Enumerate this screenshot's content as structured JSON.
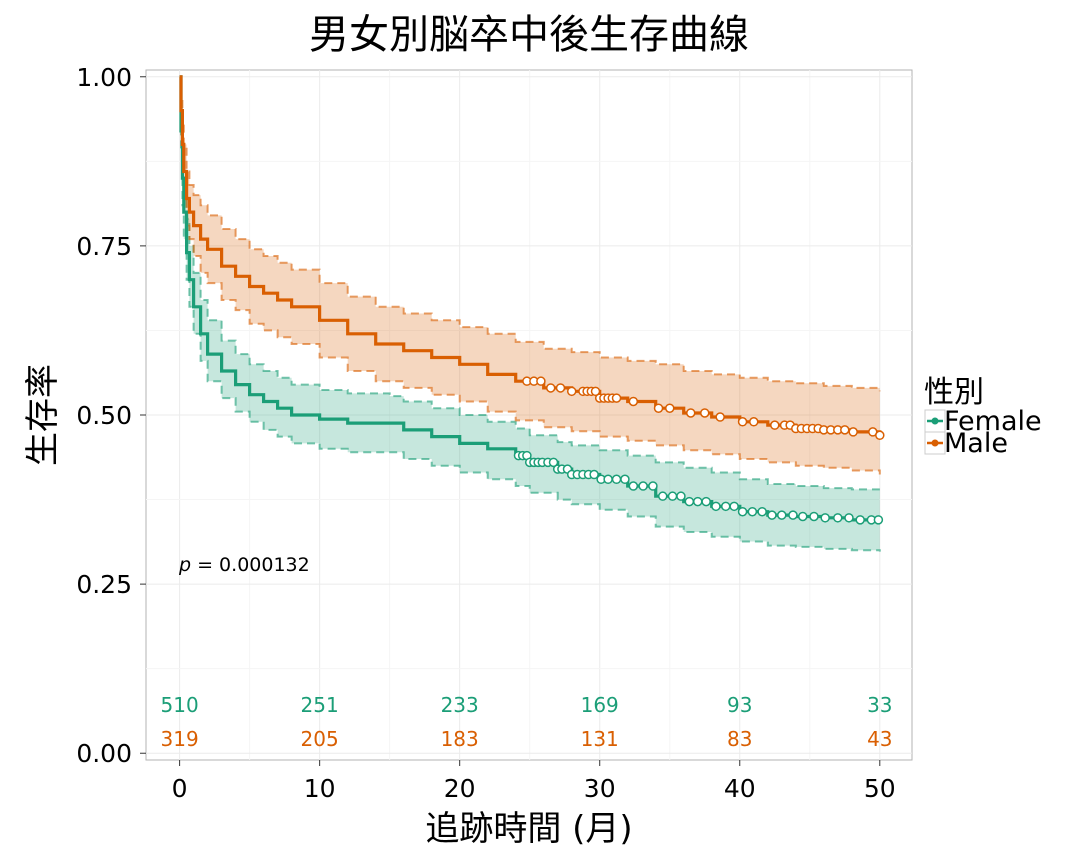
{
  "chart_data": {
    "type": "line",
    "title": "男女別脳卒中後生存曲線",
    "xlabel": "追跡時間 (月)",
    "ylabel": "生存率",
    "xlim": [
      -2.4,
      52.3
    ],
    "ylim": [
      -0.01,
      1.01
    ],
    "x_ticks": [
      "0",
      "10",
      "20",
      "30",
      "40",
      "50"
    ],
    "y_ticks": [
      "0.00",
      "0.25",
      "0.50",
      "0.75",
      "1.00"
    ],
    "grid": true,
    "legend": {
      "title": "性別",
      "position": "right"
    },
    "annotation": {
      "p_symbol": "p",
      "text": " = 0.000132",
      "x": 0,
      "y": 0.278
    },
    "colors": {
      "Female": "#1b9e77",
      "Male": "#d95f02"
    },
    "series": [
      {
        "name": "Female",
        "color": "#1b9e77",
        "x": [
          0,
          0.1,
          0.2,
          0.3,
          0.5,
          0.7,
          1.0,
          1.5,
          2.0,
          3.0,
          4.0,
          5.0,
          6.0,
          7.0,
          8.0,
          10.0,
          12.0,
          15.0,
          16.0,
          18.0,
          20.0,
          22.0,
          24.0,
          25.0,
          27.0,
          28.0,
          30.0,
          32.0,
          34.0,
          36.0,
          38.0,
          40.0,
          42.0,
          44.0,
          46.0,
          48.0,
          50.0
        ],
        "y": [
          1.0,
          0.92,
          0.85,
          0.8,
          0.74,
          0.7,
          0.66,
          0.62,
          0.59,
          0.565,
          0.545,
          0.53,
          0.52,
          0.51,
          0.5,
          0.494,
          0.488,
          0.488,
          0.478,
          0.468,
          0.458,
          0.45,
          0.44,
          0.43,
          0.42,
          0.412,
          0.405,
          0.395,
          0.38,
          0.372,
          0.365,
          0.357,
          0.352,
          0.35,
          0.348,
          0.345,
          0.343
        ],
        "upper": [
          1.0,
          0.95,
          0.89,
          0.84,
          0.79,
          0.75,
          0.71,
          0.67,
          0.64,
          0.61,
          0.59,
          0.575,
          0.565,
          0.555,
          0.545,
          0.537,
          0.532,
          0.528,
          0.52,
          0.51,
          0.5,
          0.49,
          0.48,
          0.47,
          0.46,
          0.455,
          0.448,
          0.44,
          0.43,
          0.422,
          0.415,
          0.405,
          0.398,
          0.395,
          0.392,
          0.39,
          0.39
        ],
        "lower": [
          1.0,
          0.89,
          0.81,
          0.76,
          0.7,
          0.66,
          0.62,
          0.58,
          0.55,
          0.525,
          0.505,
          0.49,
          0.478,
          0.468,
          0.458,
          0.45,
          0.445,
          0.445,
          0.435,
          0.425,
          0.415,
          0.405,
          0.395,
          0.385,
          0.375,
          0.368,
          0.36,
          0.35,
          0.335,
          0.327,
          0.32,
          0.313,
          0.307,
          0.305,
          0.302,
          0.3,
          0.298
        ],
        "censor_x": [
          24.2,
          24.5,
          24.8,
          25.0,
          25.3,
          25.6,
          25.9,
          26.3,
          26.7,
          27.0,
          27.3,
          27.7,
          28.0,
          28.4,
          28.8,
          29.2,
          29.6,
          30.1,
          30.6,
          31.2,
          31.8,
          32.4,
          33.1,
          33.8,
          34.5,
          35.2,
          35.8,
          36.4,
          37.0,
          37.6,
          38.3,
          39.0,
          39.6,
          40.2,
          40.9,
          41.6,
          42.3,
          43.0,
          43.8,
          44.5,
          45.3,
          46.1,
          47.0,
          47.8,
          48.6,
          49.4,
          49.9
        ]
      },
      {
        "name": "Male",
        "color": "#d95f02",
        "x": [
          0,
          0.1,
          0.2,
          0.3,
          0.5,
          0.7,
          1.0,
          1.5,
          2.0,
          3.0,
          4.0,
          5.0,
          6.0,
          7.0,
          8.0,
          10.0,
          12.0,
          14.0,
          16.0,
          18.0,
          20.0,
          22.0,
          24.0,
          26.0,
          28.0,
          30.0,
          32.0,
          34.0,
          36.0,
          38.0,
          40.0,
          42.0,
          44.0,
          46.0,
          48.0,
          50.0
        ],
        "y": [
          1.0,
          0.95,
          0.9,
          0.86,
          0.82,
          0.8,
          0.78,
          0.76,
          0.745,
          0.72,
          0.705,
          0.69,
          0.68,
          0.67,
          0.66,
          0.64,
          0.62,
          0.605,
          0.595,
          0.585,
          0.575,
          0.56,
          0.55,
          0.54,
          0.535,
          0.525,
          0.52,
          0.51,
          0.503,
          0.497,
          0.49,
          0.485,
          0.48,
          0.478,
          0.475,
          0.47
        ],
        "upper": [
          1.0,
          0.97,
          0.93,
          0.9,
          0.86,
          0.84,
          0.825,
          0.81,
          0.795,
          0.775,
          0.76,
          0.745,
          0.735,
          0.725,
          0.715,
          0.695,
          0.675,
          0.66,
          0.65,
          0.64,
          0.63,
          0.62,
          0.608,
          0.598,
          0.593,
          0.585,
          0.58,
          0.575,
          0.565,
          0.56,
          0.555,
          0.55,
          0.547,
          0.543,
          0.54,
          0.535
        ],
        "lower": [
          1.0,
          0.92,
          0.87,
          0.82,
          0.78,
          0.76,
          0.735,
          0.71,
          0.695,
          0.67,
          0.655,
          0.635,
          0.625,
          0.615,
          0.605,
          0.585,
          0.565,
          0.55,
          0.54,
          0.53,
          0.52,
          0.505,
          0.492,
          0.482,
          0.476,
          0.468,
          0.462,
          0.455,
          0.448,
          0.442,
          0.435,
          0.43,
          0.425,
          0.422,
          0.418,
          0.412
        ],
        "censor_x": [
          24.8,
          25.3,
          25.8,
          26.5,
          27.2,
          28.0,
          28.8,
          29.1,
          29.4,
          29.7,
          30.0,
          30.3,
          30.6,
          30.9,
          31.2,
          32.4,
          34.2,
          35.0,
          36.5,
          37.5,
          38.6,
          40.2,
          41.0,
          42.5,
          43.2,
          43.6,
          44.0,
          44.4,
          44.8,
          45.2,
          45.6,
          46.0,
          46.5,
          47.0,
          47.5,
          48.1,
          49.5,
          50.0
        ]
      }
    ],
    "risk_table": {
      "times": [
        0,
        10,
        20,
        30,
        40,
        50
      ],
      "Female": [
        "510",
        "251",
        "233",
        "169",
        "93",
        "33"
      ],
      "Male": [
        "319",
        "205",
        "183",
        "131",
        "83",
        "43"
      ]
    }
  }
}
